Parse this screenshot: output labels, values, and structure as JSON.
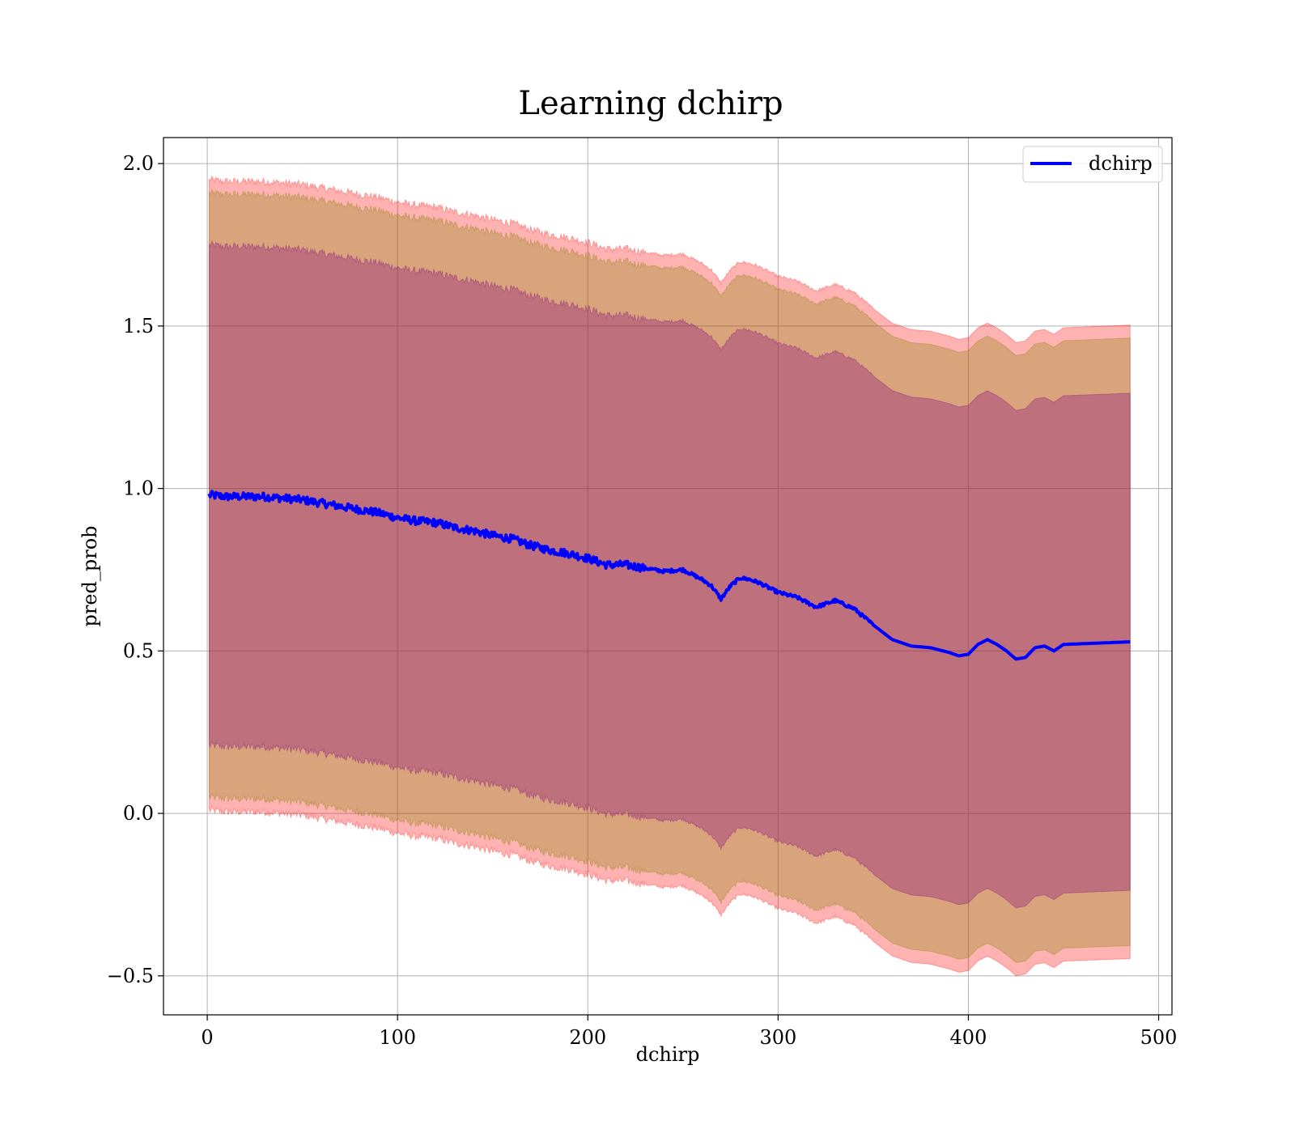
{
  "chart_data": {
    "type": "line",
    "title": "Learning dchirp",
    "xlabel": "dchirp",
    "ylabel": "pred_prob",
    "xlim": [
      -23,
      507
    ],
    "ylim": [
      -0.62,
      2.08
    ],
    "xticks": [
      0,
      100,
      200,
      300,
      400,
      500
    ],
    "yticks": [
      -0.5,
      0.0,
      0.5,
      1.0,
      1.5,
      2.0
    ],
    "xtick_labels": [
      "0",
      "100",
      "200",
      "300",
      "400",
      "500"
    ],
    "ytick_labels": [
      "−0.5",
      "0.0",
      "0.5",
      "1.0",
      "1.5",
      "2.0"
    ],
    "grid": true,
    "legend_position": "top-right",
    "series": [
      {
        "name": "dchirp",
        "color": "#0000ff",
        "x": [
          1,
          10,
          20,
          30,
          40,
          50,
          60,
          70,
          80,
          90,
          100,
          110,
          120,
          130,
          140,
          150,
          160,
          170,
          180,
          190,
          200,
          210,
          220,
          230,
          240,
          250,
          260,
          265,
          270,
          275,
          280,
          285,
          290,
          300,
          310,
          320,
          330,
          340,
          350,
          360,
          370,
          380,
          390,
          395,
          400,
          405,
          410,
          415,
          420,
          425,
          430,
          435,
          440,
          445,
          450,
          485
        ],
        "values": [
          0.98,
          0.975,
          0.975,
          0.975,
          0.97,
          0.965,
          0.955,
          0.945,
          0.935,
          0.925,
          0.91,
          0.9,
          0.895,
          0.88,
          0.87,
          0.855,
          0.845,
          0.825,
          0.81,
          0.8,
          0.785,
          0.765,
          0.765,
          0.755,
          0.745,
          0.75,
          0.72,
          0.7,
          0.66,
          0.7,
          0.725,
          0.72,
          0.71,
          0.68,
          0.665,
          0.635,
          0.655,
          0.63,
          0.58,
          0.535,
          0.515,
          0.51,
          0.495,
          0.485,
          0.49,
          0.52,
          0.535,
          0.52,
          0.5,
          0.475,
          0.48,
          0.51,
          0.515,
          0.5,
          0.52,
          0.528
        ]
      }
    ],
    "bands": [
      {
        "color": "#ff0000",
        "opacity": 0.3,
        "half_width_start": 0.97,
        "half_width_end": 0.975
      },
      {
        "color": "#808000",
        "opacity": 0.3,
        "half_width_start": 0.93,
        "half_width_end": 0.935
      },
      {
        "color": "#800080",
        "opacity": 0.3,
        "half_width_start": 0.77,
        "half_width_end": 0.765
      }
    ]
  }
}
